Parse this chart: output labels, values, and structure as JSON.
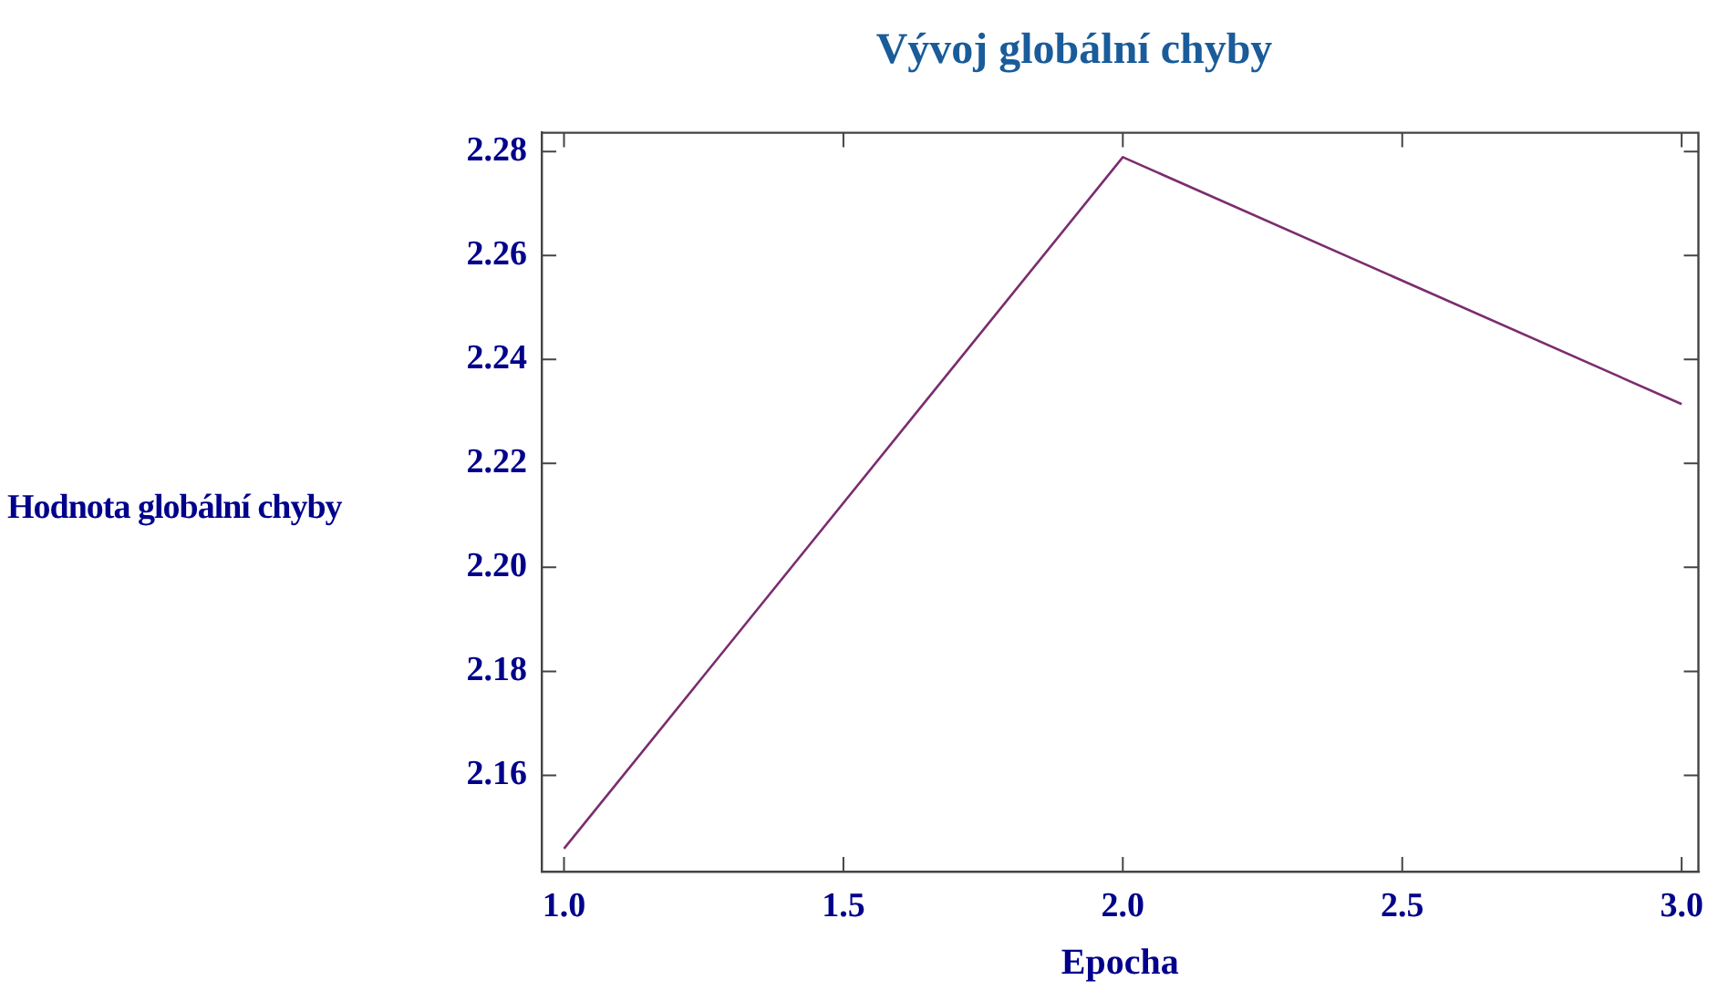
{
  "chart_data": {
    "type": "line",
    "title": "Vývoj globální chyby",
    "xlabel": "Epocha",
    "ylabel": "Hodnota globální chyby",
    "x": [
      1,
      2,
      3
    ],
    "series": [
      {
        "color": "#7b2d6e",
        "values": [
          2.1459,
          2.2789,
          2.2314
        ]
      }
    ],
    "xlim": [
      0.96,
      3.03
    ],
    "ylim": [
      2.1415,
      2.2836
    ],
    "xticks": [
      {
        "value": 1,
        "label": "1.0"
      },
      1.5,
      {
        "value": 2,
        "label": "2.0"
      },
      2.5,
      {
        "value": 3,
        "label": "3.0"
      }
    ],
    "yticks": [
      2.16,
      2.18,
      {
        "value": 2.2,
        "label": "2.20"
      },
      2.22,
      2.24,
      2.26,
      2.28
    ],
    "grid": false,
    "legend": false,
    "marker": "none",
    "line_style": "solid"
  }
}
